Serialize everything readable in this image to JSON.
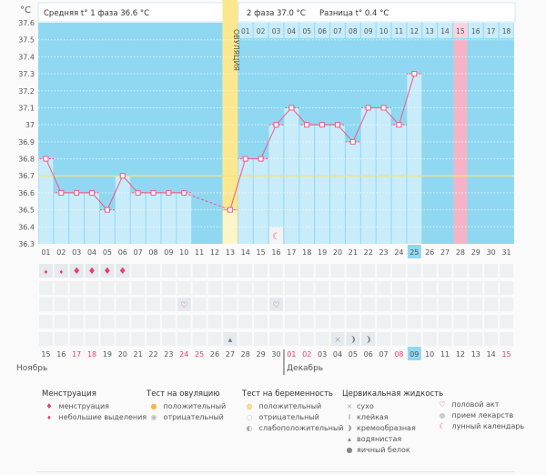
{
  "header": {
    "unit": "°C",
    "phase1": "Средняя t° 1 фаза 36.6 °C",
    "phase2": "2 фаза 37.0 °C",
    "diff": "Разница t° 0.4 °C",
    "ovulation_label": "ОВУЛЯЦИЯ"
  },
  "chart_data": {
    "type": "line",
    "ylim": [
      36.3,
      37.6
    ],
    "yticks": [
      "37.6",
      "37.5",
      "37.4",
      "37.3",
      "37.2",
      "37.1",
      "37",
      "36.9",
      "36.8",
      "36.7",
      "36.6",
      "36.5",
      "36.4",
      "36.3"
    ],
    "cover_line": 36.7,
    "cycle_days": [
      "01",
      "02",
      "03",
      "04",
      "05",
      "06",
      "07",
      "08",
      "09",
      "10",
      "11",
      "12",
      "13",
      "14",
      "15",
      "16",
      "17",
      "18",
      "19",
      "20",
      "21",
      "22",
      "23",
      "24",
      "25",
      "26",
      "27",
      "28",
      "29",
      "30",
      "31"
    ],
    "temperatures": [
      36.8,
      36.6,
      36.6,
      36.6,
      36.5,
      36.7,
      36.6,
      36.6,
      36.6,
      36.6,
      null,
      null,
      36.5,
      36.8,
      36.8,
      37.0,
      37.1,
      37.0,
      37.0,
      37.0,
      36.9,
      37.1,
      37.1,
      37.0,
      37.3,
      null,
      null,
      null,
      null,
      null,
      null
    ],
    "ovulation_day": 13,
    "phase2_start_day": 14,
    "phase2_days": [
      "01",
      "02",
      "03",
      "04",
      "05",
      "06",
      "07",
      "08",
      "09",
      "10",
      "11",
      "12",
      "13",
      "14",
      "15",
      "16",
      "17",
      "18"
    ],
    "highlight_pink_day": 28,
    "current_day": 25,
    "lunar_day": 16
  },
  "calendar": {
    "dates": [
      "15",
      "16",
      "17",
      "18",
      "19",
      "20",
      "21",
      "22",
      "23",
      "24",
      "25",
      "26",
      "27",
      "28",
      "29",
      "30",
      "01",
      "02",
      "03",
      "04",
      "05",
      "06",
      "07",
      "08",
      "09",
      "10",
      "11",
      "12",
      "13",
      "14",
      "15"
    ],
    "red_dates": [
      3,
      4,
      10,
      11,
      17,
      18,
      24,
      31
    ],
    "today_index": 25,
    "month1": "Ноябрь",
    "month2": "Декабрь",
    "menstruation": {
      "1": "small",
      "2": "small",
      "3": "full",
      "4": "full",
      "5": "full",
      "6": "full"
    },
    "intercourse_days": [
      10,
      16
    ],
    "cervical": {
      "13": "watery",
      "20": "dry",
      "21": "creamy",
      "22": "creamy"
    }
  },
  "legend": {
    "menstruation": {
      "title": "Менструация",
      "items": [
        "менструация",
        "небольшие выделения"
      ]
    },
    "ovulation_test": {
      "title": "Тест на овуляцию",
      "items": [
        "положительный",
        "отрицательный"
      ]
    },
    "pregnancy_test": {
      "title": "Тест на беременность",
      "items": [
        "положительный",
        "отрицательный",
        "слабоположительный"
      ]
    },
    "cervical": {
      "title": "Цервикальная жидкость",
      "items": [
        "сухо",
        "клейкая",
        "кремообразная",
        "водянистая",
        "яичный белок"
      ]
    },
    "other": {
      "items": [
        "половой акт",
        "прием лекарств",
        "лунный календарь"
      ]
    }
  },
  "colors": {
    "bg": "#90d8f2",
    "bar": "#c9ecfa",
    "ovulation": "#fbe88e",
    "pink": "#f7b3c6",
    "line": "#ee5a85",
    "cover": "#f3e27a"
  }
}
